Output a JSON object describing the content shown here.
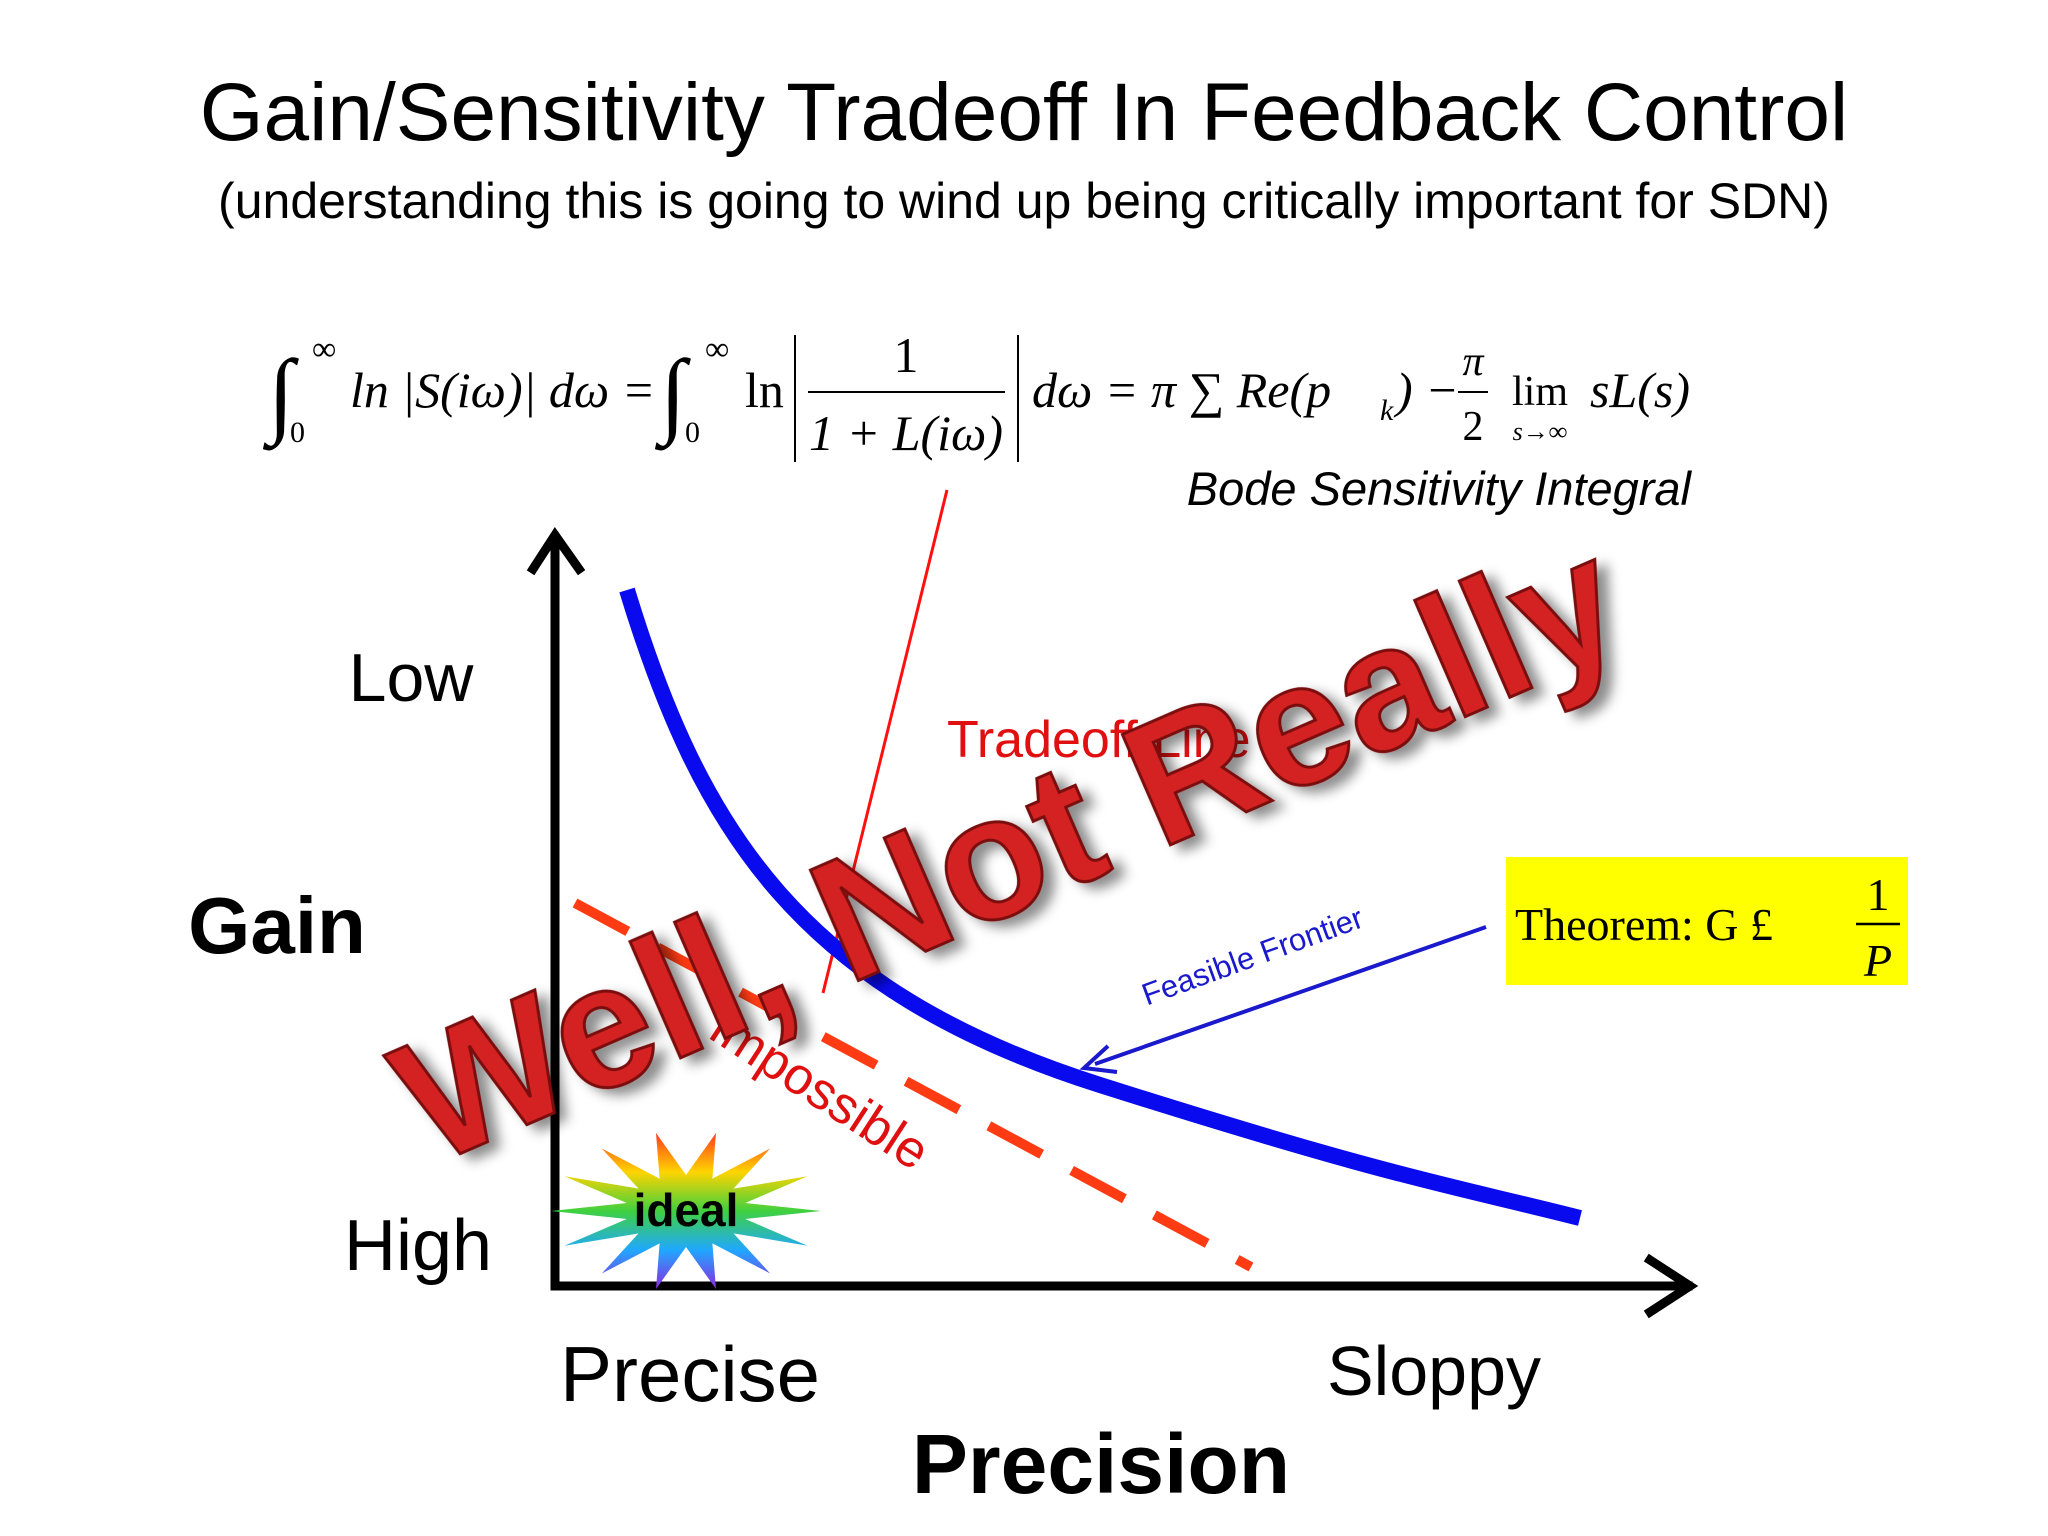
{
  "header": {
    "title": "Gain/Sensitivity Tradeoff In Feedback Control",
    "subtitle": "(understanding this is going to wind up being critically important for SDN)"
  },
  "equation": {
    "parts": [
      "∫",
      "∞",
      "0",
      "ln |S(iω)| dω =",
      "∫",
      "∞",
      "0",
      "ln",
      "1",
      "1 + L(iω)",
      "dω = π ∑ Re(p",
      "k",
      ") −",
      "π",
      "2",
      "lim",
      "s→∞",
      "sL(s)"
    ],
    "label": "Bode Sensitivity Integral"
  },
  "axes": {
    "y_label": "Gain",
    "y_top": "Low",
    "y_bottom": "High",
    "x_label": "Precision",
    "x_left": "Precise",
    "x_right": "Sloppy"
  },
  "annotations": {
    "tradeoff_line": "Tradeoff Line",
    "impossible": "Impossible",
    "feasible_frontier": "Feasible Frontier",
    "ideal": "ideal",
    "overlay": "Well, Not Really"
  },
  "theorem": {
    "text": "Theorem: G £",
    "numerator": "1",
    "denominator": "P"
  }
}
